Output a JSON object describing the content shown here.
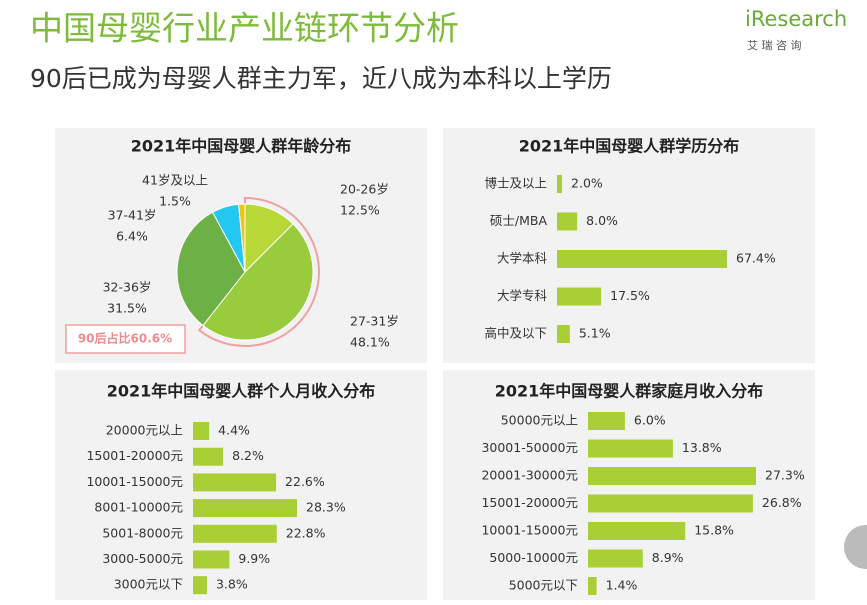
{
  "header": {
    "title": "中国母婴行业产业链环节分析",
    "subtitle": "90后已成为母婴人群主力军，近八成为本科以上学历",
    "logo": "iResearch",
    "logo_sub": "艾 瑞 咨 询"
  },
  "chart_data": [
    {
      "type": "pie",
      "title": "2021年中国母婴人群年龄分布",
      "categories": [
        "20-26岁",
        "27-31岁",
        "32-36岁",
        "37-41岁",
        "41岁及以上"
      ],
      "values": [
        12.5,
        48.1,
        31.5,
        6.4,
        1.5
      ],
      "value_labels": [
        "12.5%",
        "48.1%",
        "31.5%",
        "6.4%",
        "1.5%"
      ],
      "colors": [
        "#b8d838",
        "#98cc3c",
        "#6cb046",
        "#22c8ef",
        "#f0c417"
      ],
      "annotation": "90后占比60.6%"
    },
    {
      "type": "hbar",
      "title": "2021年中国母婴人群学历分布",
      "categories": [
        "博士及以上",
        "硕士/MBA",
        "大学本科",
        "大学专科",
        "高中及以下"
      ],
      "values": [
        2.0,
        8.0,
        67.4,
        17.5,
        5.1
      ],
      "value_labels": [
        "2.0%",
        "8.0%",
        "67.4%",
        "17.5%",
        "5.1%"
      ],
      "color": "#aacf36"
    },
    {
      "type": "hbar",
      "title": "2021年中国母婴人群个人月收入分布",
      "categories": [
        "20000元以上",
        "15001-20000元",
        "10001-15000元",
        "8001-10000元",
        "5001-8000元",
        "3000-5000元",
        "3000元以下"
      ],
      "values": [
        4.4,
        8.2,
        22.6,
        28.3,
        22.8,
        9.9,
        3.8
      ],
      "value_labels": [
        "4.4%",
        "8.2%",
        "22.6%",
        "28.3%",
        "22.8%",
        "9.9%",
        "3.8%"
      ],
      "color": "#aacf36"
    },
    {
      "type": "hbar",
      "title": "2021年中国母婴人群家庭月收入分布",
      "categories": [
        "50000元以上",
        "30001-50000元",
        "20001-30000元",
        "15001-20000元",
        "10001-15000元",
        "5000-10000元",
        "5000元以下"
      ],
      "values": [
        6.0,
        13.8,
        27.3,
        26.8,
        15.8,
        8.9,
        1.4
      ],
      "value_labels": [
        "6.0%",
        "13.8%",
        "27.3%",
        "26.8%",
        "15.8%",
        "8.9%",
        "1.4%"
      ],
      "color": "#aacf36"
    }
  ]
}
